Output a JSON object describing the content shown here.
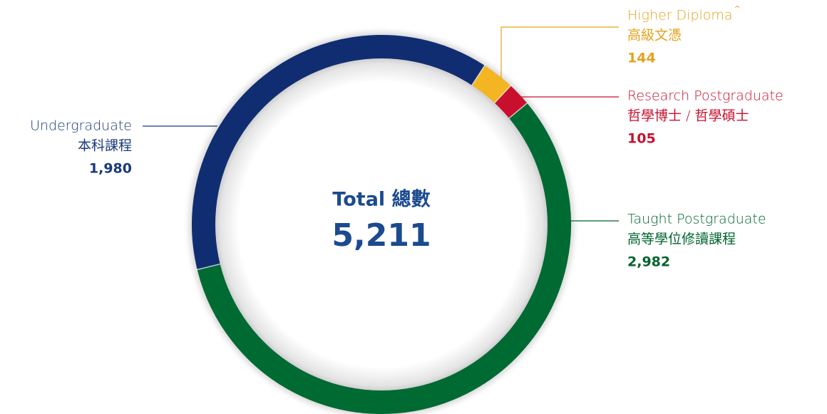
{
  "chart_data": {
    "type": "donut",
    "center_title": "Total 總數",
    "total": {
      "value": 5211,
      "label": "5,211"
    },
    "series": [
      {
        "name": "Higher Diploma",
        "superscript": "^",
        "name_zh": "高級文憑",
        "color": "#f3b522",
        "text_color": "#e5a21d",
        "values": [
          144
        ],
        "value_labels": [
          "144"
        ]
      },
      {
        "name": "Research Postgraduate",
        "name_zh": "哲學博士 / 哲學碩士",
        "color": "#c8102e",
        "text_color": "#c8102e",
        "values": [
          105
        ],
        "value_labels": [
          "105"
        ]
      },
      {
        "name": "Taught Postgraduate",
        "name_zh": "高等學位修讀課程",
        "color": "#006a33",
        "text_color": "#00642f",
        "values": [
          2982
        ],
        "value_labels": [
          "2,982"
        ]
      },
      {
        "name": "Undergraduate",
        "name_zh": "本科課程",
        "color": "#112d72",
        "text_color": "#1a3a7a",
        "values": [
          1980
        ],
        "value_labels": [
          "1,980"
        ]
      }
    ]
  }
}
